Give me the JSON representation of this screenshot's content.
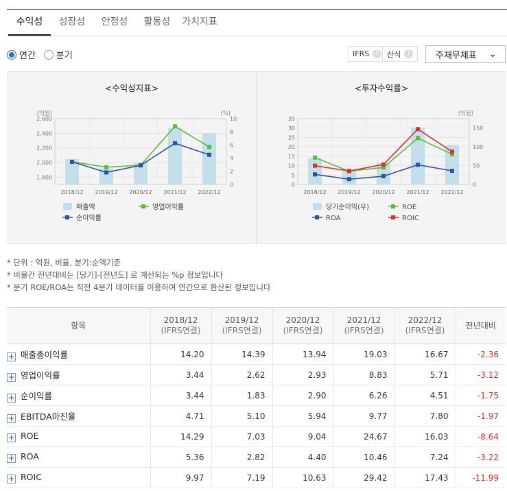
{
  "tabs": [
    "수익성",
    "성장성",
    "안정성",
    "활동성",
    "가치지표"
  ],
  "period": {
    "annual": "연간",
    "quarterly": "분기"
  },
  "buttons": {
    "ifrs": "IFRS",
    "formula": "산식",
    "question": "?"
  },
  "select": {
    "value": "주재무제표",
    "arrow": "⌄"
  },
  "chart_data": [
    {
      "type": "bar+line",
      "title": "<수익성지표>",
      "categories": [
        "2018/12",
        "2019/12",
        "2020/12",
        "2021/12",
        "2022/12"
      ],
      "left_unit": "(억원)",
      "right_unit": "(%)",
      "left_ylim": [
        1700,
        2600
      ],
      "left_ticks": [
        "2,600",
        "2,400",
        "2,200",
        "2,000",
        "1,800"
      ],
      "left_tick_values": [
        2600,
        2400,
        2200,
        2000,
        1800
      ],
      "right_ylim": [
        0,
        10
      ],
      "right_ticks": [
        "10",
        "8",
        "6",
        "4",
        "2",
        "0"
      ],
      "right_tick_values": [
        10,
        8,
        6,
        4,
        2,
        0
      ],
      "bar": {
        "name": "매출액",
        "color": "#c3e0e8",
        "values": [
          2050,
          1920,
          2000,
          2470,
          2400
        ]
      },
      "lines": [
        {
          "name": "영업이익률",
          "color": "#5bbb3b",
          "values": [
            3.44,
            2.62,
            2.93,
            8.83,
            5.71
          ]
        },
        {
          "name": "순이익률",
          "color": "#2c52a8",
          "values": [
            3.44,
            1.83,
            2.9,
            6.26,
            4.51
          ]
        }
      ],
      "legend_order": [
        "매출액",
        "영업이익률",
        "순이익률"
      ]
    },
    {
      "type": "bar+line",
      "title": "<투자수익률>",
      "categories": [
        "2018/12",
        "2019/12",
        "2020/12",
        "2021/12",
        "2022/12"
      ],
      "left_unit": "",
      "right_unit": "(억원)",
      "left_ylim": [
        0,
        35
      ],
      "left_ticks": [
        "35",
        "30",
        "25",
        "20",
        "15",
        "10",
        "5",
        "0"
      ],
      "left_tick_values": [
        35,
        30,
        25,
        20,
        15,
        10,
        5,
        0
      ],
      "right_ylim": [
        0,
        175
      ],
      "right_ticks": [
        "150",
        "100",
        "50",
        "0"
      ],
      "right_tick_values": [
        150,
        100,
        50,
        0
      ],
      "bar": {
        "name": "당기순이익(우)",
        "color": "#c3e0e8",
        "values": [
          70,
          35,
          58,
          150,
          105
        ]
      },
      "lines": [
        {
          "name": "ROE",
          "color": "#5bbb3b",
          "values": [
            14.29,
            7.03,
            9.04,
            24.67,
            16.03
          ]
        },
        {
          "name": "ROA",
          "color": "#2c52a8",
          "values": [
            5.36,
            2.82,
            4.4,
            10.46,
            7.24
          ]
        },
        {
          "name": "ROIC",
          "color": "#d7322c",
          "values": [
            9.97,
            7.19,
            10.63,
            29.42,
            17.43
          ]
        }
      ],
      "legend_order": [
        "당기순이익(우)",
        "ROE",
        "ROA",
        "ROIC"
      ]
    }
  ],
  "notes": [
    "* 단위 : 억원, 비율, 분기:순액기준",
    "* 비율간 전년대비는 [당기]-[전년도] 로 계산되는 %p 정보입니다",
    "* 분기 ROE/ROA는 직전 4분기 데이터를 이용하여 연간으로 환산된 정보입니다"
  ],
  "table": {
    "header_item": "항목",
    "years": [
      "2018/12",
      "2019/12",
      "2020/12",
      "2021/12",
      "2022/12"
    ],
    "sub": "(IFRS연결)",
    "yoy": "전년대비",
    "expand_symbol": "+",
    "rows": [
      {
        "label": "매출총이익률",
        "values": [
          "14.20",
          "14.39",
          "13.94",
          "19.03",
          "16.67"
        ],
        "yoy": "-2.36"
      },
      {
        "label": "영업이익률",
        "values": [
          "3.44",
          "2.62",
          "2.93",
          "8.83",
          "5.71"
        ],
        "yoy": "-3.12"
      },
      {
        "label": "순이익률",
        "values": [
          "3.44",
          "1.83",
          "2.90",
          "6.26",
          "4.51"
        ],
        "yoy": "-1.75"
      },
      {
        "label": "EBITDA마진율",
        "values": [
          "4.71",
          "5.10",
          "5.94",
          "9.77",
          "7.80"
        ],
        "yoy": "-1.97"
      },
      {
        "label": "ROE",
        "values": [
          "14.29",
          "7.03",
          "9.04",
          "24.67",
          "16.03"
        ],
        "yoy": "-8.64"
      },
      {
        "label": "ROA",
        "values": [
          "5.36",
          "2.82",
          "4.40",
          "10.46",
          "7.24"
        ],
        "yoy": "-3.22"
      },
      {
        "label": "ROIC",
        "values": [
          "9.97",
          "7.19",
          "10.63",
          "29.42",
          "17.43"
        ],
        "yoy": "-11.99"
      }
    ]
  }
}
